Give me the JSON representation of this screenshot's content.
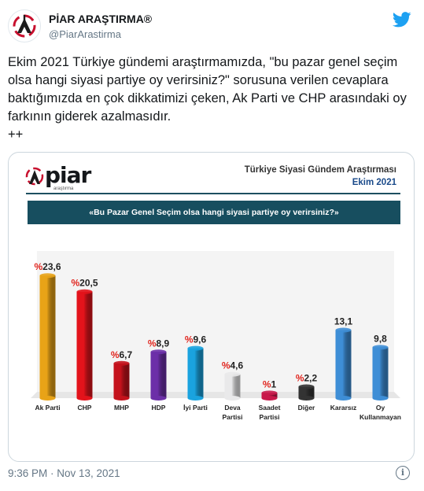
{
  "tweet": {
    "name": "PİAR ARAŞTIRMA®",
    "handle": "@PiarArastirma",
    "text": "Ekim 2021 Türkiye gündemi araştırmamızda, \"bu pazar genel seçim olsa hangi siyasi partiye oy verirsiniz?\" sorusuna verilen cevaplara baktığımızda en çok dikkatimizi çeken, Ak Parti ve CHP arasındaki oy farkının giderek azalmasıdır.\n++",
    "timestamp": "9:36 PM · Nov 13, 2021",
    "info_label": "i"
  },
  "report": {
    "logo": "piar",
    "logo_sub": "araştırma",
    "title": "Türkiye Siyasi Gündem Araştırması",
    "subtitle": "Ekim 2021",
    "question": "«Bu Pazar Genel Seçim olsa hangi siyasi partiye oy verirsiniz?»"
  },
  "colors": {
    "accent": "#c8102e",
    "twitter_blue": "#1da1f2",
    "question_bg": "#174e5f",
    "percent_label": "#e0231c"
  },
  "chart_data": {
    "type": "bar",
    "categories": [
      "Ak Parti",
      "CHP",
      "MHP",
      "HDP",
      "İyi Parti",
      "Deva Partisi",
      "Saadet Partisi",
      "Diğer",
      "Kararsız",
      "Oy Kullanmayan"
    ],
    "category_lines": [
      [
        "Ak Parti"
      ],
      [
        "CHP"
      ],
      [
        "MHP"
      ],
      [
        "HDP"
      ],
      [
        "İyi Parti"
      ],
      [
        "Deva",
        "Partisi"
      ],
      [
        "Saadet",
        "Partisi"
      ],
      [
        "Diğer"
      ],
      [
        "Kararsız"
      ],
      [
        "Oy",
        "Kullanmayan"
      ]
    ],
    "values": [
      23.6,
      20.5,
      6.7,
      8.9,
      9.6,
      4.6,
      1,
      2.2,
      13.1,
      9.8
    ],
    "labels": [
      "23,6",
      "20,5",
      "6,7",
      "8,9",
      "9,6",
      "4,6",
      "1",
      "2,2",
      "13,1",
      "9,8"
    ],
    "label_prefix": [
      "%",
      "%",
      "%",
      "%",
      "%",
      "%",
      "%",
      "%",
      "",
      ""
    ],
    "bar_colors": [
      "#e8a317",
      "#e3131b",
      "#c4121c",
      "#6c2fa8",
      "#1aa3df",
      "#e9e9ea",
      "#c8184a",
      "#333333",
      "#3e8ed6",
      "#3e8ed6"
    ],
    "ylim": [
      0,
      25
    ]
  }
}
